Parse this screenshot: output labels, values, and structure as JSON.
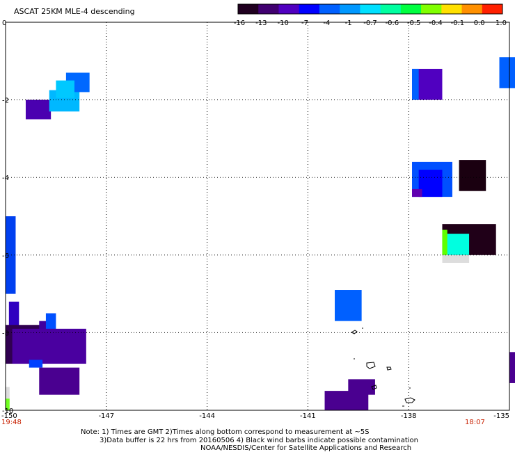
{
  "title": "ASCAT 25KM MLE-4 descending",
  "colorbar": {
    "labels": [
      "-16",
      "-13",
      "-10",
      "-7",
      "-4",
      "-1",
      "-0.7",
      "-0.6",
      "-0.5",
      "-0.4",
      "-0.1",
      "0.0",
      "1.0"
    ],
    "colors": [
      "#200020",
      "#400070",
      "#5000c0",
      "#0000ff",
      "#0060ff",
      "#0098ff",
      "#00e0ff",
      "#00ffa0",
      "#00ff40",
      "#80ff00",
      "#ffe000",
      "#ff9000",
      "#ff2000"
    ]
  },
  "axes": {
    "x_ticks": [
      "-150",
      "-147",
      "-144",
      "-141",
      "-138",
      "-135"
    ],
    "y_ticks": [
      "0",
      "-2",
      "-4",
      "-6",
      "-8",
      "-10"
    ],
    "x_range": [
      -150,
      -135
    ],
    "y_range": [
      -10,
      0
    ]
  },
  "time_labels": {
    "left": "19:48",
    "right": "18:07"
  },
  "notes": {
    "line1": "Note: 1) Times are GMT 2)Times along bottom correspond to measurement at ~5S",
    "line2": "3)Data buffer is 22 hrs from 20160506 4) Black wind barbs indicate possible contamination",
    "line3": "NOAA/NESDIS/Center for Satellite Applications and Research"
  },
  "cells": [
    {
      "lon": -149.4,
      "lat": -2.5,
      "dlon": 0.75,
      "dlat": 0.5,
      "color": "#4a00b0"
    },
    {
      "lon": -148.7,
      "lat": -2.3,
      "dlon": 0.9,
      "dlat": 0.55,
      "color": "#00b8ff"
    },
    {
      "lon": -148.2,
      "lat": -1.8,
      "dlon": 0.7,
      "dlat": 0.5,
      "color": "#0068ff"
    },
    {
      "lon": -148.5,
      "lat": -1.95,
      "dlon": 0.55,
      "dlat": 0.45,
      "color": "#00c8ff"
    },
    {
      "lon": -150.0,
      "lat": -6.5,
      "dlon": 0.12,
      "dlat": 1.3,
      "color": "#0050ff"
    },
    {
      "lon": -150.0,
      "lat": -7.0,
      "dlon": 0.3,
      "dlat": 2.0,
      "color": "#0040f0"
    },
    {
      "lon": -149.9,
      "lat": -8.0,
      "dlon": 0.3,
      "dlat": 0.8,
      "color": "#3000c0"
    },
    {
      "lon": -150.0,
      "lat": -8.8,
      "dlon": 1.2,
      "dlat": 1.0,
      "color": "#300050"
    },
    {
      "lon": -149.0,
      "lat": -8.3,
      "dlon": 0.4,
      "dlat": 0.6,
      "color": "#4000a0"
    },
    {
      "lon": -148.8,
      "lat": -8.0,
      "dlon": 0.3,
      "dlat": 0.5,
      "color": "#0050ff"
    },
    {
      "lon": -149.8,
      "lat": -8.8,
      "dlon": 2.2,
      "dlat": 0.9,
      "color": "#4a00a0"
    },
    {
      "lon": -149.3,
      "lat": -8.9,
      "dlon": 0.4,
      "dlat": 0.2,
      "color": "#0040ff"
    },
    {
      "lon": -149.0,
      "lat": -9.6,
      "dlon": 1.2,
      "dlat": 0.7,
      "color": "#4a0090"
    },
    {
      "lon": -150.0,
      "lat": -9.7,
      "dlon": 0.12,
      "dlat": 0.3,
      "color": "#dddddd"
    },
    {
      "lon": -150.0,
      "lat": -10.0,
      "dlon": 0.12,
      "dlat": 0.3,
      "color": "#70ff20"
    },
    {
      "lon": -137.9,
      "lat": -2.0,
      "dlon": 0.9,
      "dlat": 0.8,
      "color": "#5000c0"
    },
    {
      "lon": -137.9,
      "lat": -2.0,
      "dlon": 0.2,
      "dlat": 0.8,
      "color": "#0060ff"
    },
    {
      "lon": -135.3,
      "lat": -1.7,
      "dlon": 0.7,
      "dlat": 0.8,
      "color": "#0060ff"
    },
    {
      "lon": -137.9,
      "lat": -4.5,
      "dlon": 1.2,
      "dlat": 0.9,
      "color": "#0050ff"
    },
    {
      "lon": -137.7,
      "lat": -4.5,
      "dlon": 0.7,
      "dlat": 0.7,
      "color": "#0000ff"
    },
    {
      "lon": -137.9,
      "lat": -4.5,
      "dlon": 0.3,
      "dlat": 0.2,
      "color": "#6000b0"
    },
    {
      "lon": -136.5,
      "lat": -4.35,
      "dlon": 0.8,
      "dlat": 0.8,
      "color": "#1a0010"
    },
    {
      "lon": -137.0,
      "lat": -6.0,
      "dlon": 1.6,
      "dlat": 0.8,
      "color": "#200018"
    },
    {
      "lon": -136.9,
      "lat": -6.0,
      "dlon": 0.7,
      "dlat": 0.55,
      "color": "#00ffe0"
    },
    {
      "lon": -137.0,
      "lat": -6.0,
      "dlon": 0.15,
      "dlat": 0.65,
      "color": "#60ff00"
    },
    {
      "lon": -137.0,
      "lat": -6.2,
      "dlon": 0.8,
      "dlat": 0.2,
      "color": "#dddddd"
    },
    {
      "lon": -140.2,
      "lat": -7.7,
      "dlon": 0.8,
      "dlat": 0.8,
      "color": "#0060ff"
    },
    {
      "lon": -140.5,
      "lat": -10.0,
      "dlon": 1.3,
      "dlat": 0.5,
      "color": "#4a0090"
    },
    {
      "lon": -139.8,
      "lat": -9.6,
      "dlon": 0.8,
      "dlat": 0.4,
      "color": "#4a0090"
    },
    {
      "lon": -135.0,
      "lat": -9.3,
      "dlon": 0.3,
      "dlat": 0.8,
      "color": "#4a0090"
    }
  ]
}
